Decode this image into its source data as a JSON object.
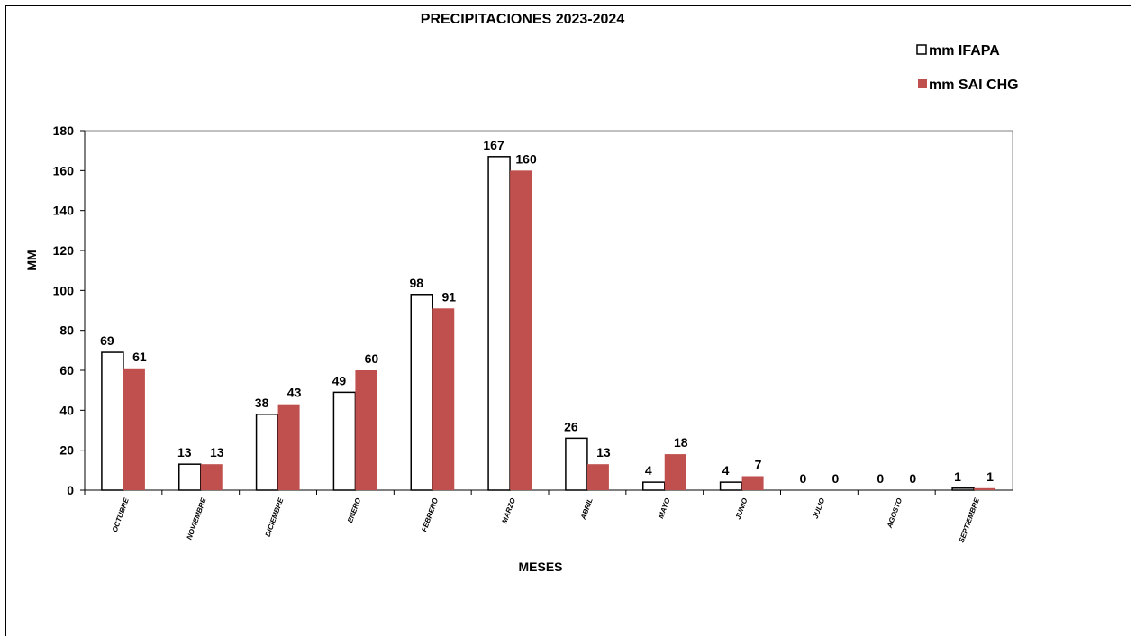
{
  "chart_data": {
    "type": "bar",
    "title": "PRECIPITACIONES 2023-2024",
    "xlabel": "MESES",
    "ylabel": "MM",
    "ylim": [
      0,
      180
    ],
    "yticks": [
      0,
      20,
      40,
      60,
      80,
      100,
      120,
      140,
      160,
      180
    ],
    "grid": false,
    "legend_position": "top-right",
    "categories": [
      "OCTUBRE",
      "NOVIEMBRE",
      "DICIEMBRE",
      "ENERO",
      "FEBRERO",
      "MARZO",
      "ABRIL",
      "MAYO",
      "JUNIO",
      "JULIO",
      "AGOSTO",
      "SEPTIEMBRE"
    ],
    "series": [
      {
        "name": "mm IFAPA",
        "color": "#ffffff",
        "stroke": "#000000",
        "values": [
          69,
          13,
          38,
          49,
          98,
          167,
          26,
          4,
          4,
          0,
          0,
          1
        ]
      },
      {
        "name": "mm SAI CHG",
        "color": "#c0504d",
        "stroke": "#c0504d",
        "values": [
          61,
          13,
          43,
          60,
          91,
          160,
          13,
          18,
          7,
          0,
          0,
          1
        ]
      }
    ]
  }
}
